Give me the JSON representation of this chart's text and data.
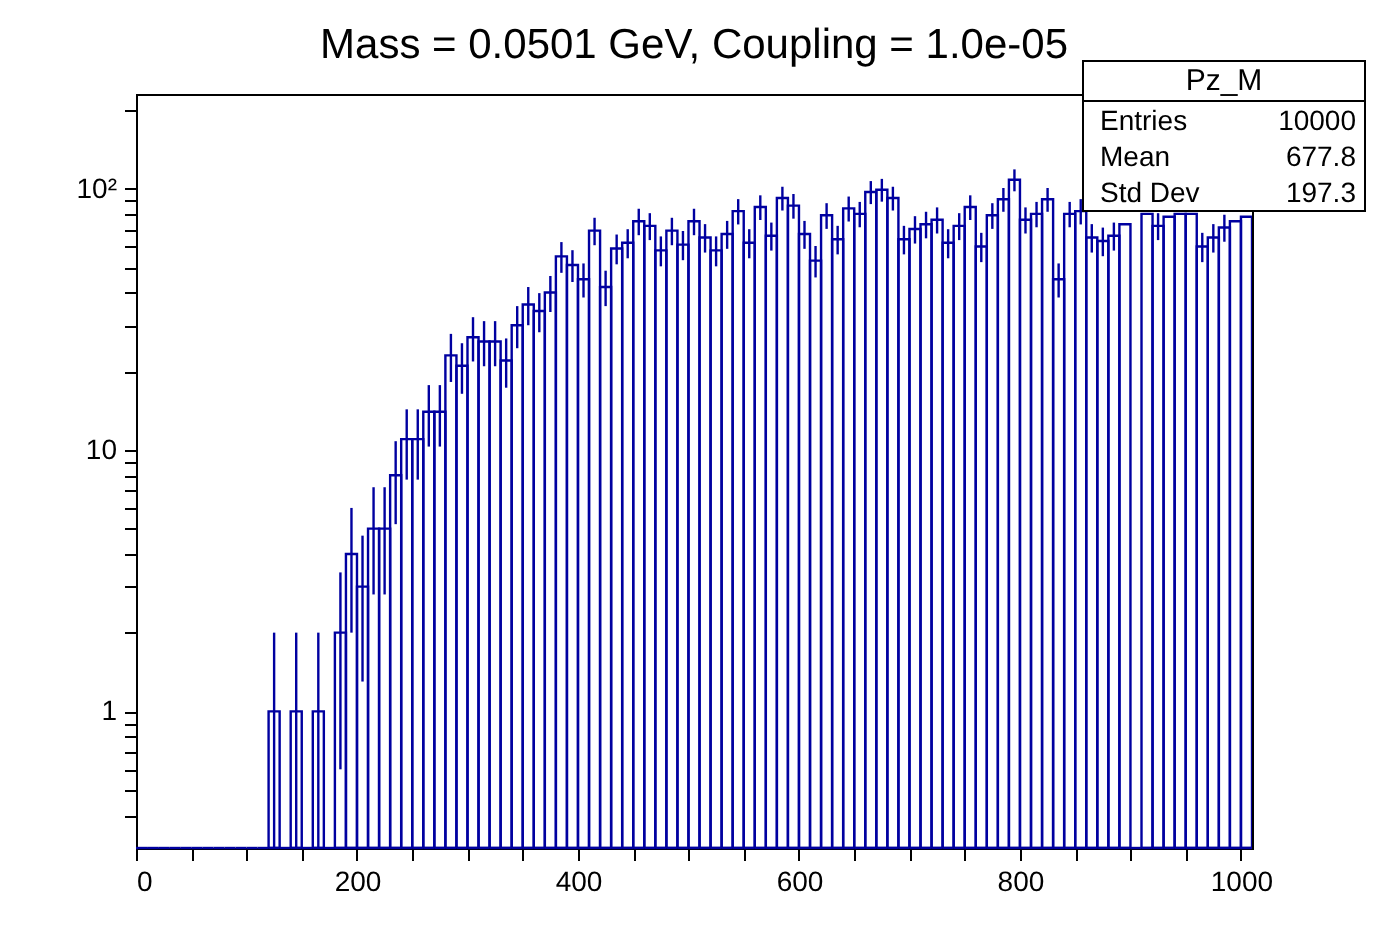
{
  "chart_data": {
    "type": "histogram",
    "title": "Mass = 0.0501 GeV, Coupling = 1.0e-05",
    "bins": [
      0,
      10,
      20,
      30,
      40,
      50,
      60,
      70,
      80,
      90,
      100,
      110,
      120,
      130,
      140,
      150,
      160,
      170,
      180,
      190,
      200,
      210,
      220,
      230,
      240,
      250,
      260,
      270,
      280,
      290,
      300,
      310,
      320,
      330,
      340,
      350,
      360,
      370,
      380,
      390,
      400,
      410,
      420,
      430,
      440,
      450,
      460,
      470,
      480,
      490,
      500,
      510,
      520,
      530,
      540,
      550,
      560,
      570,
      580,
      590,
      600,
      610,
      620,
      630,
      640,
      650,
      660,
      670,
      680,
      690,
      700,
      710,
      720,
      730,
      740,
      750,
      760,
      770,
      780,
      790,
      800,
      810,
      820,
      830,
      840,
      850,
      860,
      870,
      880,
      890,
      900,
      910,
      920,
      930,
      940,
      950,
      960,
      970,
      980,
      990,
      1000,
      1010
    ],
    "values": [
      null,
      null,
      null,
      null,
      null,
      null,
      null,
      null,
      null,
      null,
      null,
      null,
      1,
      null,
      1,
      null,
      1,
      null,
      2,
      4,
      3,
      5,
      5,
      8,
      11,
      11,
      14,
      14,
      23,
      21,
      27,
      26,
      26,
      22,
      30,
      36,
      34,
      40,
      55,
      51,
      45,
      69,
      42,
      59,
      62,
      75,
      72,
      58,
      69,
      61,
      75,
      65,
      58,
      67,
      82,
      62,
      85,
      66,
      92,
      86,
      67,
      53,
      79,
      64,
      84,
      80,
      97,
      99,
      92,
      64,
      70,
      73,
      76,
      62,
      72,
      85,
      60,
      79,
      91,
      108,
      76,
      80,
      91,
      45,
      80,
      82,
      65,
      63,
      66,
      73,
      null,
      80,
      72,
      78,
      80,
      80,
      60,
      65,
      71,
      75,
      78
    ],
    "errors": [
      null,
      null,
      null,
      null,
      null,
      null,
      null,
      null,
      null,
      null,
      null,
      null,
      [
        0.3,
        2
      ],
      null,
      [
        0.3,
        2
      ],
      null,
      [
        0.3,
        2
      ],
      null,
      1.4,
      2,
      1.7,
      2.2,
      2.2,
      2.8,
      3.3,
      3.3,
      3.7,
      3.7,
      4.8,
      4.6,
      5.2,
      5.1,
      5.1,
      4.7,
      5.5,
      6,
      5.8,
      6.3,
      7.4,
      7.1,
      6.7,
      8.3,
      6.5,
      7.7,
      7.9,
      8.7,
      8.5,
      7.6,
      8.3,
      7.8,
      8.7,
      8.1,
      7.6,
      8.2,
      9.1,
      7.9,
      9.2,
      8.1,
      9.6,
      9.3,
      8.2,
      7.3,
      8.9,
      8,
      9.2,
      8.9,
      9.8,
      9.9,
      9.6,
      8,
      8.4,
      8.5,
      8.7,
      7.9,
      8.5,
      9.2,
      7.7,
      8.9,
      9.5,
      10.4,
      8.7,
      8.9,
      9.5,
      6.7,
      8.9,
      9.1,
      8.1,
      7.9,
      8.1,
      null,
      null,
      null,
      8.5,
      null,
      null,
      null,
      7.7,
      8.1,
      8.4,
      null,
      null
    ],
    "color": "#0000a0",
    "log": "y",
    "xlim": [
      0,
      1010
    ],
    "ylim": [
      0.3,
      230
    ],
    "xticks": [
      0,
      {
        "value": 50,
        "label": null
      },
      {
        "value": 100,
        "label": null
      },
      {
        "value": 150,
        "label": null
      },
      200,
      {
        "value": 250,
        "label": null
      },
      {
        "value": 300,
        "label": null
      },
      {
        "value": 350,
        "label": null
      },
      400,
      {
        "value": 450,
        "label": null
      },
      {
        "value": 500,
        "label": null
      },
      {
        "value": 550,
        "label": null
      },
      600,
      {
        "value": 650,
        "label": null
      },
      {
        "value": 700,
        "label": null
      },
      {
        "value": 750,
        "label": null
      },
      800,
      {
        "value": 850,
        "label": null
      },
      {
        "value": 900,
        "label": null
      },
      {
        "value": 950,
        "label": null
      },
      1000
    ],
    "yticks": [
      {
        "value": 0.4,
        "label": null
      },
      {
        "value": 0.5,
        "label": null
      },
      {
        "value": 0.6,
        "label": null
      },
      {
        "value": 0.7,
        "label": null
      },
      {
        "value": 0.8,
        "label": null
      },
      {
        "value": 0.9,
        "label": null
      },
      1,
      {
        "value": 2,
        "label": null
      },
      {
        "value": 3,
        "label": null
      },
      {
        "value": 4,
        "label": null
      },
      {
        "value": 5,
        "label": null
      },
      {
        "value": 6,
        "label": null
      },
      {
        "value": 7,
        "label": null
      },
      {
        "value": 8,
        "label": null
      },
      {
        "value": 9,
        "label": null
      },
      10,
      {
        "value": 20,
        "label": null
      },
      {
        "value": 30,
        "label": null
      },
      {
        "value": 40,
        "label": null
      },
      {
        "value": 50,
        "label": null
      },
      {
        "value": 60,
        "label": null
      },
      {
        "value": 70,
        "label": null
      },
      {
        "value": 80,
        "label": null
      },
      {
        "value": 90,
        "label": null
      },
      {
        "value": 100,
        "label": "10²"
      },
      {
        "value": 200,
        "label": null
      }
    ],
    "annotations": [
      "Pz_M",
      "Entries",
      "10000",
      "Mean",
      "677.8",
      "Std Dev",
      "197.3"
    ]
  }
}
